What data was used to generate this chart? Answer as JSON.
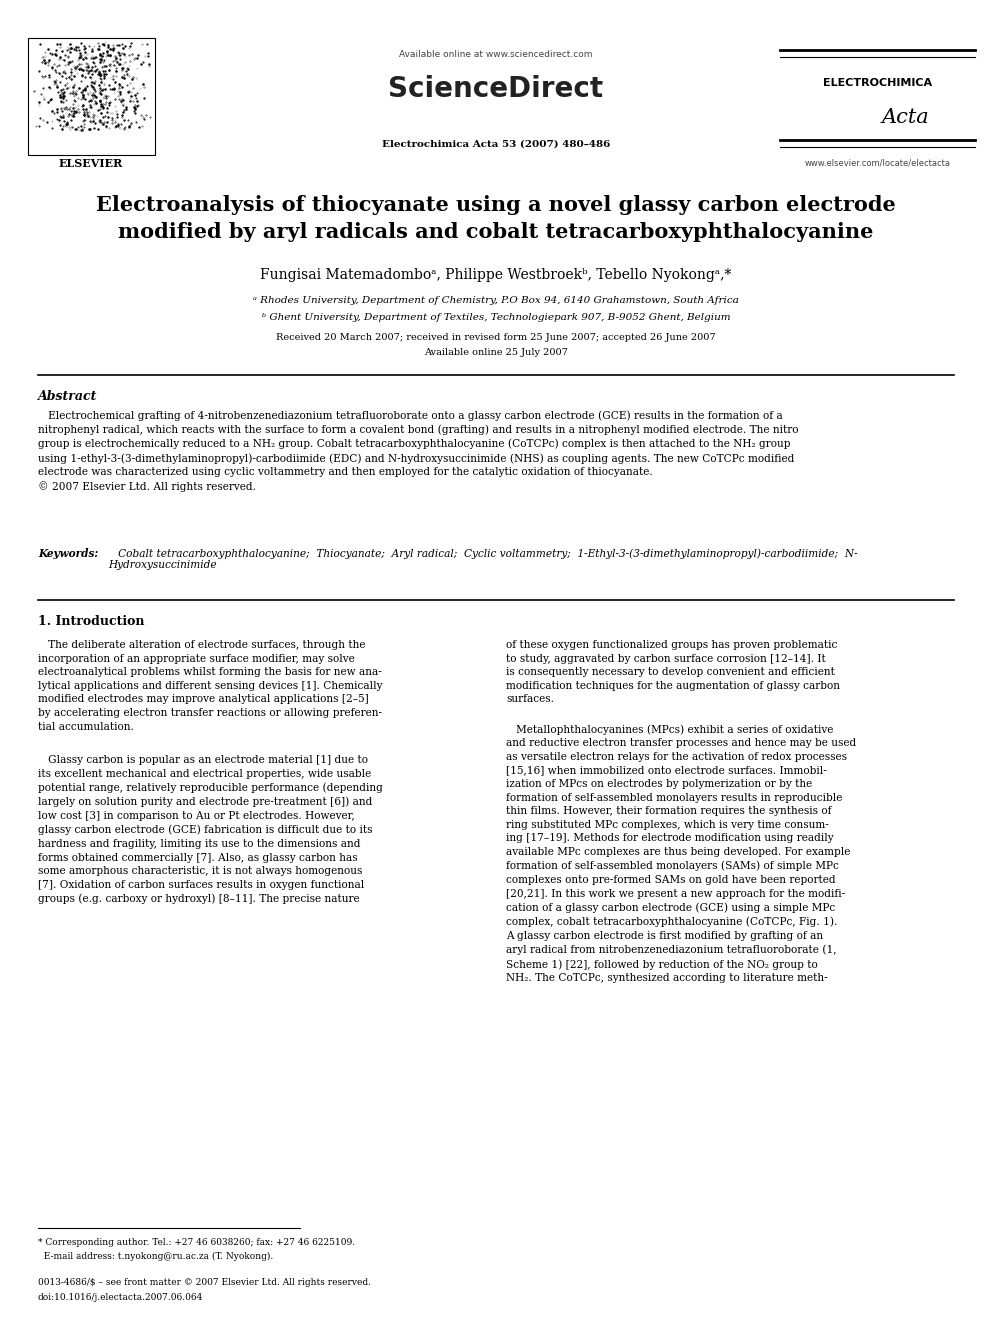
{
  "bg_color": "#ffffff",
  "page_width": 9.92,
  "page_height": 13.23,
  "dpi": 100,
  "header": {
    "available_online": "Available online at www.sciencedirect.com",
    "journal_line": "Electrochimica Acta 53 (2007) 480–486",
    "journal_name": "ELECTROCHIMICA",
    "journal_name2": "Acta",
    "website": "www.elsevier.com/locate/electacta",
    "sciencedirect": "ScienceDirect"
  },
  "title_line1": "Electroanalysis of thiocyanate using a novel glassy carbon electrode",
  "title_line2": "modified by aryl radicals and cobalt tetracarboxyphthalocyanine",
  "authors": "Fungisai Matemadomboᵃ, Philippe Westbroekᵇ, Tebello Nyokongᵃ,*",
  "affil1": "ᵃ Rhodes University, Department of Chemistry, P.O Box 94, 6140 Grahamstown, South Africa",
  "affil2": "ᵇ Ghent University, Department of Textiles, Technologiepark 907, B-9052 Ghent, Belgium",
  "received": "Received 20 March 2007; received in revised form 25 June 2007; accepted 26 June 2007",
  "available": "Available online 25 July 2007",
  "abstract_title": "Abstract",
  "abstract_text": "   Electrochemical grafting of 4-nitrobenzenediazonium tetrafluoroborate onto a glassy carbon electrode (GCE) results in the formation of a\nnitrophenyl radical, which reacts with the surface to form a covalent bond (grafting) and results in a nitrophenyl modified electrode. The nitro\ngroup is electrochemically reduced to a NH₂ group. Cobalt tetracarboxyphthalocyanine (CoTCPc) complex is then attached to the NH₂ group\nusing 1-ethyl-3-(3-dimethylaminopropyl)-carbodiimide (EDC) and N-hydroxysuccinimide (NHS) as coupling agents. The new CoTCPc modified\nelectrode was characterized using cyclic voltammetry and then employed for the catalytic oxidation of thiocyanate.\n© 2007 Elsevier Ltd. All rights reserved.",
  "keywords_label": "Keywords:",
  "keywords_text": "   Cobalt tetracarboxyphthalocyanine;  Thiocyanate;  Aryl radical;  Cyclic voltammetry;  1-Ethyl-3-(3-dimethylaminopropyl)-carbodiimide;  N-\nHydroxysuccinimide",
  "section1_title": "1. Introduction",
  "col1_para1": "   The deliberate alteration of electrode surfaces, through the\nincorporation of an appropriate surface modifier, may solve\nelectroanalytical problems whilst forming the basis for new ana-\nlytical applications and different sensing devices [1]. Chemically\nmodified electrodes may improve analytical applications [2–5]\nby accelerating electron transfer reactions or allowing preferen-\ntial accumulation.",
  "col1_para2": "   Glassy carbon is popular as an electrode material [1] due to\nits excellent mechanical and electrical properties, wide usable\npotential range, relatively reproducible performance (depending\nlargely on solution purity and electrode pre-treatment [6]) and\nlow cost [3] in comparison to Au or Pt electrodes. However,\nglassy carbon electrode (GCE) fabrication is difficult due to its\nhardness and fragility, limiting its use to the dimensions and\nforms obtained commercially [7]. Also, as glassy carbon has\nsome amorphous characteristic, it is not always homogenous\n[7]. Oxidation of carbon surfaces results in oxygen functional\ngroups (e.g. carboxy or hydroxyl) [8–11]. The precise nature",
  "col2_para1": "of these oxygen functionalized groups has proven problematic\nto study, aggravated by carbon surface corrosion [12–14]. It\nis consequently necessary to develop convenient and efficient\nmodification techniques for the augmentation of glassy carbon\nsurfaces.",
  "col2_para2": "   Metallophthalocyanines (MPcs) exhibit a series of oxidative\nand reductive electron transfer processes and hence may be used\nas versatile electron relays for the activation of redox processes\n[15,16] when immobilized onto electrode surfaces. Immobil-\nization of MPcs on electrodes by polymerization or by the\nformation of self-assembled monolayers results in reproducible\nthin films. However, their formation requires the synthesis of\nring substituted MPc complexes, which is very time consum-\ning [17–19]. Methods for electrode modification using readily\navailable MPc complexes are thus being developed. For example\nformation of self-assembled monolayers (SAMs) of simple MPc\ncomplexes onto pre-formed SAMs on gold have been reported\n[20,21]. In this work we present a new approach for the modifi-\ncation of a glassy carbon electrode (GCE) using a simple MPc\ncomplex, cobalt tetracarboxyphthalocyanine (CoTCPc, Fig. 1).\nA glassy carbon electrode is first modified by grafting of an\naryl radical from nitrobenzenediazonium tetrafluoroborate (1,\nScheme 1) [22], followed by reduction of the NO₂ group to\nNH₂. The CoTCPc, synthesized according to literature meth-",
  "footer_note1": "* Corresponding author. Tel.: +27 46 6038260; fax: +27 46 6225109.",
  "footer_note2": "  E-mail address: t.nyokong@ru.ac.za (T. Nyokong).",
  "footer_line1": "0013-4686/$ – see front matter © 2007 Elsevier Ltd. All rights reserved.",
  "footer_line2": "doi:10.1016/j.electacta.2007.06.064"
}
